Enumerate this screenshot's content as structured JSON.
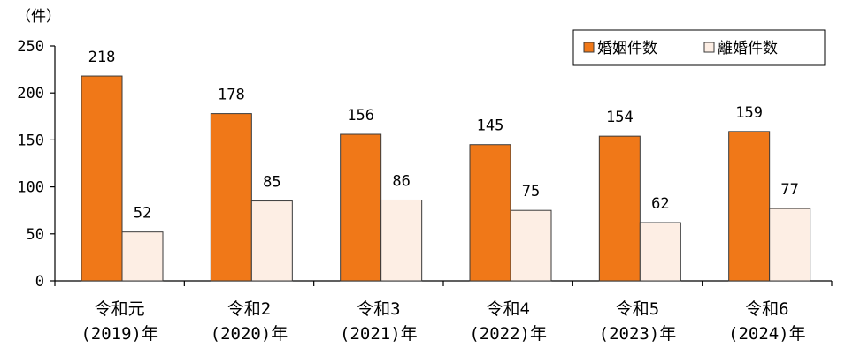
{
  "chart_data": {
    "type": "bar",
    "unit_label": "（件）",
    "ylim": [
      0,
      250
    ],
    "yticks": [
      0,
      50,
      100,
      150,
      200,
      250
    ],
    "categories": [
      [
        "令和元",
        "(2019)年"
      ],
      [
        "令和2",
        "(2020)年"
      ],
      [
        "令和3",
        "(2021)年"
      ],
      [
        "令和4",
        "(2022)年"
      ],
      [
        "令和5",
        "(2023)年"
      ],
      [
        "令和6",
        "(2024)年"
      ]
    ],
    "series": [
      {
        "name": "婚姻件数",
        "values": [
          218,
          178,
          156,
          145,
          154,
          159
        ],
        "color": "#f07818",
        "stroke": "#3a3a3a"
      },
      {
        "name": "離婚件数",
        "values": [
          52,
          85,
          86,
          75,
          62,
          77
        ],
        "color": "#fdeee4",
        "stroke": "#3a3a3a"
      }
    ],
    "legend_position": "top-right",
    "grid": false
  }
}
